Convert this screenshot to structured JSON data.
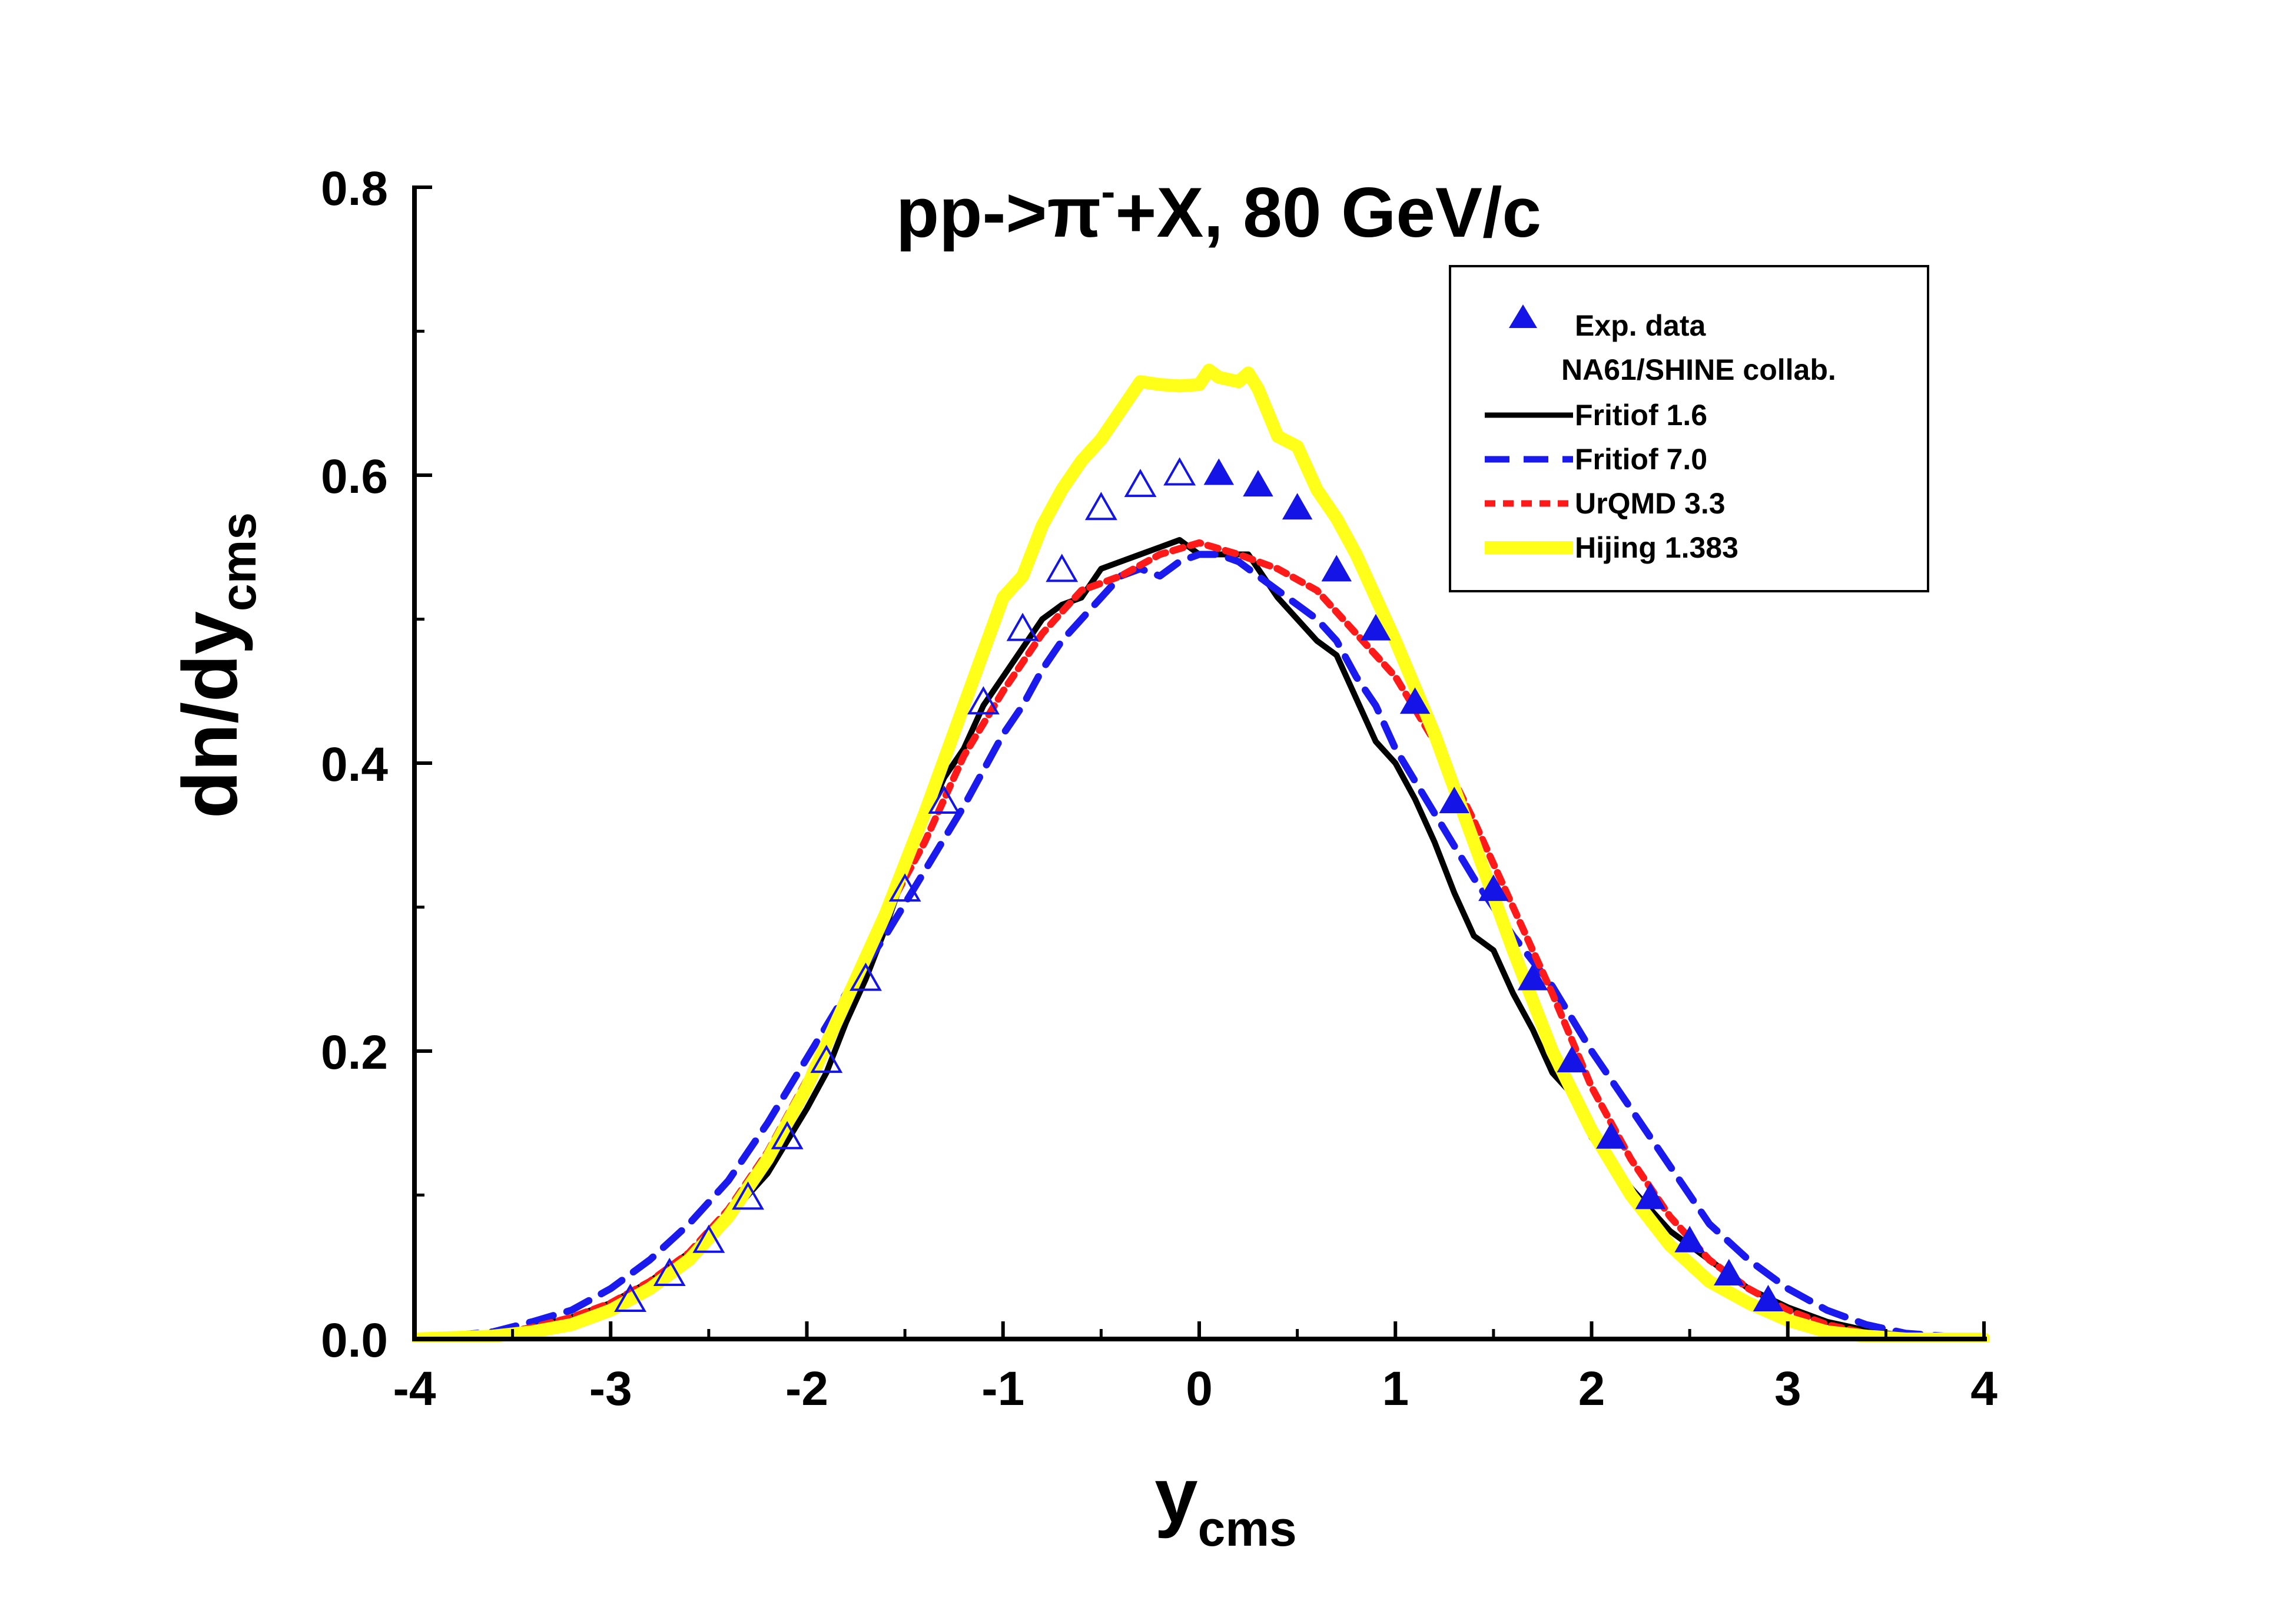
{
  "chart_data": {
    "type": "line",
    "title": {
      "prefix": "pp->",
      "particle": "π",
      "superscript": "-",
      "suffix": "+X, 80 GeV/c"
    },
    "xlabel": {
      "main": "y",
      "sub": "cms"
    },
    "ylabel": {
      "main": "dn/dy",
      "sub": "cms"
    },
    "xlim": [
      -4,
      4
    ],
    "ylim": [
      0,
      0.8
    ],
    "x_ticks": [
      -4,
      -3,
      -2,
      -1,
      0,
      1,
      2,
      3,
      4
    ],
    "x_tick_labels": [
      "-4",
      "-3",
      "-2",
      "-1",
      "0",
      "1",
      "2",
      "3",
      "4"
    ],
    "y_ticks": [
      0.0,
      0.2,
      0.4,
      0.6,
      0.8
    ],
    "y_tick_labels": [
      "0.0",
      "0.2",
      "0.4",
      "0.6",
      "0.8"
    ],
    "grid": false,
    "legend": {
      "position": "top-right",
      "entries": [
        {
          "label": "Exp. data",
          "marker": "filled-triangle"
        },
        {
          "label": "NA61/SHINE collab.",
          "marker": "none"
        },
        {
          "label": "Fritiof 1.6",
          "series": "fritiof16"
        },
        {
          "label": "Fritiof 7.0",
          "series": "fritiof70"
        },
        {
          "label": "UrQMD 3.3",
          "series": "urqmd33"
        },
        {
          "label": "Hijing 1.383",
          "series": "hijing"
        }
      ]
    },
    "experimental": {
      "name": "Exp. data NA61/SHINE collab.",
      "color": "#1414e6",
      "points": [
        {
          "x": -2.9,
          "y": 0.027,
          "filled": false
        },
        {
          "x": -2.7,
          "y": 0.045,
          "filled": false
        },
        {
          "x": -2.5,
          "y": 0.068,
          "filled": false
        },
        {
          "x": -2.3,
          "y": 0.098,
          "filled": false
        },
        {
          "x": -2.1,
          "y": 0.14,
          "filled": false
        },
        {
          "x": -1.9,
          "y": 0.193,
          "filled": false
        },
        {
          "x": -1.7,
          "y": 0.25,
          "filled": false
        },
        {
          "x": -1.5,
          "y": 0.312,
          "filled": false
        },
        {
          "x": -1.3,
          "y": 0.373,
          "filled": false
        },
        {
          "x": -1.1,
          "y": 0.442,
          "filled": false
        },
        {
          "x": -0.9,
          "y": 0.493,
          "filled": false
        },
        {
          "x": -0.7,
          "y": 0.534,
          "filled": false
        },
        {
          "x": -0.5,
          "y": 0.577,
          "filled": false
        },
        {
          "x": -0.3,
          "y": 0.593,
          "filled": false
        },
        {
          "x": -0.1,
          "y": 0.601,
          "filled": false
        },
        {
          "x": 0.1,
          "y": 0.601,
          "filled": true
        },
        {
          "x": 0.3,
          "y": 0.593,
          "filled": true
        },
        {
          "x": 0.5,
          "y": 0.577,
          "filled": true
        },
        {
          "x": 0.7,
          "y": 0.534,
          "filled": true
        },
        {
          "x": 0.9,
          "y": 0.493,
          "filled": true
        },
        {
          "x": 1.1,
          "y": 0.442,
          "filled": true
        },
        {
          "x": 1.3,
          "y": 0.373,
          "filled": true
        },
        {
          "x": 1.5,
          "y": 0.312,
          "filled": true
        },
        {
          "x": 1.7,
          "y": 0.25,
          "filled": true
        },
        {
          "x": 1.9,
          "y": 0.193,
          "filled": true
        },
        {
          "x": 2.1,
          "y": 0.14,
          "filled": true
        },
        {
          "x": 2.3,
          "y": 0.098,
          "filled": true
        },
        {
          "x": 2.5,
          "y": 0.068,
          "filled": true
        },
        {
          "x": 2.7,
          "y": 0.045,
          "filled": true
        },
        {
          "x": 2.9,
          "y": 0.027,
          "filled": true
        }
      ]
    },
    "series": [
      {
        "id": "fritiof16",
        "name": "Fritiof 1.6",
        "color": "#000000",
        "style": "solid",
        "x": [
          -4.0,
          -3.6,
          -3.4,
          -3.2,
          -3.0,
          -2.8,
          -2.6,
          -2.4,
          -2.2,
          -2.0,
          -1.9,
          -1.8,
          -1.7,
          -1.6,
          -1.5,
          -1.4,
          -1.3,
          -1.2,
          -1.1,
          -1.0,
          -0.9,
          -0.8,
          -0.7,
          -0.6,
          -0.5,
          -0.4,
          -0.3,
          -0.2,
          -0.1,
          0.0,
          0.1,
          0.2,
          0.25,
          0.3,
          0.4,
          0.5,
          0.6,
          0.7,
          0.8,
          0.9,
          1.0,
          1.1,
          1.2,
          1.3,
          1.4,
          1.5,
          1.6,
          1.7,
          1.8,
          1.9,
          2.0,
          2.2,
          2.4,
          2.6,
          2.8,
          3.0,
          3.2,
          3.4,
          3.6,
          4.0
        ],
        "y": [
          0.0,
          0.003,
          0.008,
          0.015,
          0.025,
          0.04,
          0.06,
          0.085,
          0.115,
          0.16,
          0.185,
          0.22,
          0.25,
          0.285,
          0.325,
          0.36,
          0.39,
          0.41,
          0.44,
          0.46,
          0.48,
          0.5,
          0.51,
          0.515,
          0.535,
          0.54,
          0.545,
          0.55,
          0.555,
          0.545,
          0.545,
          0.545,
          0.545,
          0.535,
          0.515,
          0.5,
          0.485,
          0.475,
          0.445,
          0.415,
          0.4,
          0.375,
          0.345,
          0.31,
          0.28,
          0.27,
          0.24,
          0.215,
          0.185,
          0.17,
          0.14,
          0.105,
          0.075,
          0.055,
          0.035,
          0.022,
          0.012,
          0.006,
          0.002,
          0.0
        ]
      },
      {
        "id": "fritiof70",
        "name": "Fritiof 7.0",
        "color": "#1a1aee",
        "style": "dashed",
        "x": [
          -4.0,
          -3.6,
          -3.4,
          -3.2,
          -3.0,
          -2.8,
          -2.6,
          -2.4,
          -2.2,
          -2.0,
          -1.8,
          -1.6,
          -1.4,
          -1.2,
          -1.0,
          -0.9,
          -0.8,
          -0.7,
          -0.6,
          -0.5,
          -0.4,
          -0.3,
          -0.2,
          -0.1,
          0.0,
          0.1,
          0.2,
          0.3,
          0.4,
          0.5,
          0.6,
          0.7,
          0.8,
          0.9,
          1.0,
          1.2,
          1.4,
          1.6,
          1.8,
          2.0,
          2.2,
          2.4,
          2.6,
          2.8,
          3.0,
          3.2,
          3.4,
          3.6,
          4.0
        ],
        "y": [
          0.0,
          0.005,
          0.012,
          0.02,
          0.035,
          0.055,
          0.08,
          0.11,
          0.15,
          0.195,
          0.24,
          0.28,
          0.325,
          0.37,
          0.42,
          0.44,
          0.465,
          0.485,
          0.5,
          0.515,
          0.53,
          0.535,
          0.53,
          0.54,
          0.545,
          0.545,
          0.54,
          0.53,
          0.52,
          0.51,
          0.5,
          0.485,
          0.46,
          0.44,
          0.41,
          0.365,
          0.32,
          0.28,
          0.245,
          0.2,
          0.16,
          0.12,
          0.08,
          0.055,
          0.035,
          0.02,
          0.01,
          0.004,
          0.0
        ]
      },
      {
        "id": "urqmd33",
        "name": "UrQMD 3.3",
        "color": "#ff1a1a",
        "style": "dotted",
        "x": [
          -4.0,
          -3.6,
          -3.4,
          -3.2,
          -3.0,
          -2.8,
          -2.6,
          -2.4,
          -2.2,
          -2.0,
          -1.8,
          -1.6,
          -1.4,
          -1.2,
          -1.0,
          -0.8,
          -0.6,
          -0.4,
          -0.2,
          0.0,
          0.2,
          0.4,
          0.6,
          0.8,
          1.0,
          1.2,
          1.4,
          1.6,
          1.8,
          2.0,
          2.2,
          2.4,
          2.6,
          2.8,
          3.0,
          3.2,
          3.4,
          3.6,
          4.0
        ],
        "y": [
          0.0,
          0.003,
          0.008,
          0.015,
          0.025,
          0.04,
          0.06,
          0.09,
          0.13,
          0.18,
          0.24,
          0.295,
          0.345,
          0.405,
          0.45,
          0.49,
          0.52,
          0.53,
          0.545,
          0.553,
          0.545,
          0.535,
          0.52,
          0.49,
          0.46,
          0.415,
          0.36,
          0.3,
          0.24,
          0.175,
          0.125,
          0.085,
          0.055,
          0.035,
          0.02,
          0.01,
          0.004,
          0.001,
          0.0
        ]
      },
      {
        "id": "hijing",
        "name": "Hijing 1.383",
        "color": "#ffff1a",
        "style": "thick",
        "x": [
          -4.0,
          -3.6,
          -3.4,
          -3.2,
          -3.0,
          -2.8,
          -2.6,
          -2.4,
          -2.2,
          -2.0,
          -1.8,
          -1.6,
          -1.4,
          -1.2,
          -1.0,
          -0.9,
          -0.8,
          -0.7,
          -0.6,
          -0.5,
          -0.4,
          -0.3,
          -0.2,
          -0.1,
          0.0,
          0.05,
          0.1,
          0.2,
          0.25,
          0.3,
          0.4,
          0.5,
          0.6,
          0.7,
          0.8,
          0.9,
          1.0,
          1.2,
          1.4,
          1.6,
          1.8,
          2.0,
          2.2,
          2.4,
          2.6,
          2.8,
          3.0,
          3.2,
          3.4,
          3.6,
          4.0
        ],
        "y": [
          0.0,
          0.002,
          0.005,
          0.01,
          0.02,
          0.035,
          0.055,
          0.085,
          0.125,
          0.175,
          0.235,
          0.295,
          0.365,
          0.44,
          0.515,
          0.53,
          0.565,
          0.59,
          0.61,
          0.625,
          0.645,
          0.665,
          0.663,
          0.662,
          0.663,
          0.673,
          0.668,
          0.665,
          0.671,
          0.66,
          0.627,
          0.62,
          0.59,
          0.57,
          0.545,
          0.515,
          0.485,
          0.42,
          0.345,
          0.27,
          0.2,
          0.145,
          0.1,
          0.065,
          0.04,
          0.025,
          0.013,
          0.005,
          0.002,
          0.0,
          0.0
        ]
      }
    ]
  }
}
